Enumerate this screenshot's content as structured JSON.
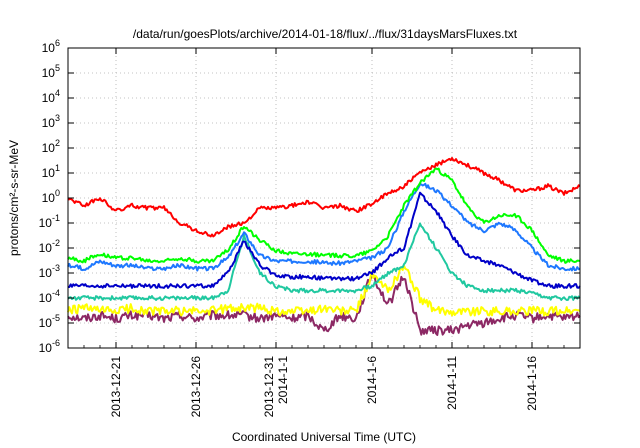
{
  "chart_data": {
    "type": "line",
    "title": "/data/run/goesPlots/archive/2014-01-18/flux/../flux/31daysMarsFluxes.txt",
    "xlabel": "Coordinated Universal Time (UTC)",
    "ylabel": "protons/cm²-s-sr-MeV",
    "log_y": true,
    "ylim": [
      1e-06,
      1000000.0
    ],
    "xlim": [
      "2013-12-18",
      "2014-01-19"
    ],
    "grid": true,
    "y_ticks": [
      {
        "value": 1e-06,
        "base": "10",
        "exp": "-6"
      },
      {
        "value": 1e-05,
        "base": "10",
        "exp": "-5"
      },
      {
        "value": 0.0001,
        "base": "10",
        "exp": "-4"
      },
      {
        "value": 0.001,
        "base": "10",
        "exp": "-3"
      },
      {
        "value": 0.01,
        "base": "10",
        "exp": "-2"
      },
      {
        "value": 0.1,
        "base": "10",
        "exp": "-1"
      },
      {
        "value": 1,
        "base": "10",
        "exp": "0"
      },
      {
        "value": 10.0,
        "base": "10",
        "exp": "1"
      },
      {
        "value": 100.0,
        "base": "10",
        "exp": "2"
      },
      {
        "value": 1000.0,
        "base": "10",
        "exp": "3"
      },
      {
        "value": 10000.0,
        "base": "10",
        "exp": "4"
      },
      {
        "value": 100000.0,
        "base": "10",
        "exp": "5"
      },
      {
        "value": 1000000.0,
        "base": "10",
        "exp": "6"
      }
    ],
    "x_ticks": [
      {
        "date": "2013-12-21",
        "lines": [
          "2013-12-21"
        ]
      },
      {
        "date": "2013-12-26",
        "lines": [
          "2013-12-26"
        ]
      },
      {
        "date": "2013-12-31",
        "lines": [
          "2013-12-31",
          "2014-1-1"
        ]
      },
      {
        "date": "2014-01-06",
        "lines": [
          "2014-1-6"
        ]
      },
      {
        "date": "2014-01-11",
        "lines": [
          "2014-1-11"
        ]
      },
      {
        "date": "2014-01-16",
        "lines": [
          "2014-1-16"
        ]
      }
    ],
    "series": [
      {
        "color": "#ff0000",
        "points": [
          [
            "2013-12-18",
            1.0
          ],
          [
            "2013-12-19",
            0.5
          ],
          [
            "2013-12-20",
            1.0
          ],
          [
            "2013-12-21",
            0.3
          ],
          [
            "2013-12-22",
            0.5
          ],
          [
            "2013-12-23",
            0.4
          ],
          [
            "2013-12-24",
            0.4
          ],
          [
            "2013-12-25",
            0.1
          ],
          [
            "2013-12-26",
            0.05
          ],
          [
            "2013-12-27",
            0.03
          ],
          [
            "2013-12-28",
            0.07
          ],
          [
            "2013-12-29",
            0.1
          ],
          [
            "2013-12-30",
            0.4
          ],
          [
            "2013-12-31",
            0.4
          ],
          [
            "2014-01-01",
            0.5
          ],
          [
            "2014-01-02",
            0.7
          ],
          [
            "2014-01-03",
            0.4
          ],
          [
            "2014-01-04",
            0.5
          ],
          [
            "2014-01-05",
            0.3
          ],
          [
            "2014-01-06",
            0.6
          ],
          [
            "2014-01-07",
            1.5
          ],
          [
            "2014-01-08",
            3
          ],
          [
            "2014-01-09",
            10
          ],
          [
            "2014-01-10",
            20
          ],
          [
            "2014-01-11",
            40
          ],
          [
            "2014-01-12",
            20
          ],
          [
            "2014-01-13",
            10
          ],
          [
            "2014-01-14",
            5
          ],
          [
            "2014-01-15",
            2
          ],
          [
            "2014-01-16",
            2
          ],
          [
            "2014-01-17",
            3
          ],
          [
            "2014-01-18",
            1.5
          ],
          [
            "2014-01-19",
            3
          ]
        ]
      },
      {
        "color": "#00ff00",
        "points": [
          [
            "2013-12-18",
            0.004
          ],
          [
            "2013-12-19",
            0.003
          ],
          [
            "2013-12-20",
            0.006
          ],
          [
            "2013-12-21",
            0.004
          ],
          [
            "2013-12-22",
            0.004
          ],
          [
            "2013-12-23",
            0.003
          ],
          [
            "2013-12-24",
            0.003
          ],
          [
            "2013-12-25",
            0.004
          ],
          [
            "2013-12-26",
            0.003
          ],
          [
            "2013-12-27",
            0.003
          ],
          [
            "2013-12-28",
            0.008
          ],
          [
            "2013-12-29",
            0.08
          ],
          [
            "2013-12-30",
            0.02
          ],
          [
            "2013-12-31",
            0.008
          ],
          [
            "2014-01-01",
            0.006
          ],
          [
            "2014-01-02",
            0.006
          ],
          [
            "2014-01-03",
            0.005
          ],
          [
            "2014-01-04",
            0.005
          ],
          [
            "2014-01-05",
            0.005
          ],
          [
            "2014-01-06",
            0.008
          ],
          [
            "2014-01-07",
            0.03
          ],
          [
            "2014-01-08",
            0.5
          ],
          [
            "2014-01-09",
            4
          ],
          [
            "2014-01-10",
            15
          ],
          [
            "2014-01-11",
            5
          ],
          [
            "2014-01-12",
            0.4
          ],
          [
            "2014-01-13",
            0.1
          ],
          [
            "2014-01-14",
            0.2
          ],
          [
            "2014-01-15",
            0.2
          ],
          [
            "2014-01-16",
            0.05
          ],
          [
            "2014-01-17",
            0.005
          ],
          [
            "2014-01-18",
            0.003
          ],
          [
            "2014-01-19",
            0.003
          ]
        ]
      },
      {
        "color": "#1e78ff",
        "points": [
          [
            "2013-12-18",
            0.002
          ],
          [
            "2013-12-19",
            0.0015
          ],
          [
            "2013-12-20",
            0.003
          ],
          [
            "2013-12-21",
            0.002
          ],
          [
            "2013-12-22",
            0.002
          ],
          [
            "2013-12-23",
            0.0015
          ],
          [
            "2013-12-24",
            0.0015
          ],
          [
            "2013-12-25",
            0.002
          ],
          [
            "2013-12-26",
            0.0015
          ],
          [
            "2013-12-27",
            0.0015
          ],
          [
            "2013-12-28",
            0.004
          ],
          [
            "2013-12-29",
            0.04
          ],
          [
            "2013-12-30",
            0.005
          ],
          [
            "2013-12-31",
            0.003
          ],
          [
            "2014-01-01",
            0.003
          ],
          [
            "2014-01-02",
            0.003
          ],
          [
            "2014-01-03",
            0.0025
          ],
          [
            "2014-01-04",
            0.0025
          ],
          [
            "2014-01-05",
            0.003
          ],
          [
            "2014-01-06",
            0.004
          ],
          [
            "2014-01-07",
            0.01
          ],
          [
            "2014-01-08",
            0.3
          ],
          [
            "2014-01-09",
            4
          ],
          [
            "2014-01-10",
            2
          ],
          [
            "2014-01-11",
            0.5
          ],
          [
            "2014-01-12",
            0.1
          ],
          [
            "2014-01-13",
            0.05
          ],
          [
            "2014-01-14",
            0.1
          ],
          [
            "2014-01-15",
            0.05
          ],
          [
            "2014-01-16",
            0.01
          ],
          [
            "2014-01-17",
            0.002
          ],
          [
            "2014-01-18",
            0.0015
          ],
          [
            "2014-01-19",
            0.0015
          ]
        ]
      },
      {
        "color": "#0000c8",
        "points": [
          [
            "2013-12-18",
            0.0003
          ],
          [
            "2013-12-19",
            0.0003
          ],
          [
            "2013-12-20",
            0.0003
          ],
          [
            "2013-12-21",
            0.0003
          ],
          [
            "2013-12-22",
            0.0003
          ],
          [
            "2013-12-23",
            0.0003
          ],
          [
            "2013-12-24",
            0.0003
          ],
          [
            "2013-12-25",
            0.0003
          ],
          [
            "2013-12-26",
            0.0003
          ],
          [
            "2013-12-27",
            0.0003
          ],
          [
            "2013-12-28",
            0.001
          ],
          [
            "2013-12-29",
            0.02
          ],
          [
            "2013-12-30",
            0.002
          ],
          [
            "2013-12-31",
            0.0008
          ],
          [
            "2014-01-01",
            0.0007
          ],
          [
            "2014-01-02",
            0.0007
          ],
          [
            "2014-01-03",
            0.0006
          ],
          [
            "2014-01-04",
            0.0006
          ],
          [
            "2014-01-05",
            0.0006
          ],
          [
            "2014-01-06",
            0.001
          ],
          [
            "2014-01-07",
            0.004
          ],
          [
            "2014-01-08",
            0.01
          ],
          [
            "2014-01-09",
            1.5
          ],
          [
            "2014-01-10",
            0.3
          ],
          [
            "2014-01-11",
            0.03
          ],
          [
            "2014-01-12",
            0.005
          ],
          [
            "2014-01-13",
            0.003
          ],
          [
            "2014-01-14",
            0.002
          ],
          [
            "2014-01-15",
            0.001
          ],
          [
            "2014-01-16",
            0.0005
          ],
          [
            "2014-01-17",
            0.0003
          ],
          [
            "2014-01-18",
            0.0003
          ],
          [
            "2014-01-19",
            0.0003
          ]
        ]
      },
      {
        "color": "#20c8a0",
        "points": [
          [
            "2013-12-18",
            0.0001
          ],
          [
            "2013-12-19",
            0.0001
          ],
          [
            "2013-12-20",
            0.0001
          ],
          [
            "2013-12-21",
            0.0001
          ],
          [
            "2013-12-22",
            0.0001
          ],
          [
            "2013-12-23",
            0.0001
          ],
          [
            "2013-12-24",
            0.0001
          ],
          [
            "2013-12-25",
            0.0001
          ],
          [
            "2013-12-26",
            0.0001
          ],
          [
            "2013-12-27",
            0.0001
          ],
          [
            "2013-12-28",
            0.0002
          ],
          [
            "2013-12-29",
            0.03
          ],
          [
            "2013-12-30",
            0.001
          ],
          [
            "2013-12-31",
            0.0003
          ],
          [
            "2014-01-01",
            0.0002
          ],
          [
            "2014-01-02",
            0.0002
          ],
          [
            "2014-01-03",
            0.0002
          ],
          [
            "2014-01-04",
            0.0002
          ],
          [
            "2014-01-05",
            0.0002
          ],
          [
            "2014-01-06",
            0.0003
          ],
          [
            "2014-01-07",
            0.001
          ],
          [
            "2014-01-08",
            0.002
          ],
          [
            "2014-01-09",
            0.1
          ],
          [
            "2014-01-10",
            0.01
          ],
          [
            "2014-01-11",
            0.001
          ],
          [
            "2014-01-12",
            0.0003
          ],
          [
            "2014-01-13",
            0.0002
          ],
          [
            "2014-01-14",
            0.0002
          ],
          [
            "2014-01-15",
            0.0002
          ],
          [
            "2014-01-16",
            0.00015
          ],
          [
            "2014-01-17",
            0.0001
          ],
          [
            "2014-01-18",
            0.0001
          ],
          [
            "2014-01-19",
            0.0001
          ]
        ]
      },
      {
        "color": "#ffff00",
        "points": [
          [
            "2013-12-18",
            3e-05
          ],
          [
            "2013-12-19",
            4e-05
          ],
          [
            "2013-12-20",
            3e-05
          ],
          [
            "2013-12-21",
            3e-05
          ],
          [
            "2013-12-22",
            4e-05
          ],
          [
            "2013-12-23",
            3e-05
          ],
          [
            "2013-12-24",
            3e-05
          ],
          [
            "2013-12-25",
            3e-05
          ],
          [
            "2013-12-26",
            3e-05
          ],
          [
            "2013-12-27",
            3e-05
          ],
          [
            "2013-12-28",
            4e-05
          ],
          [
            "2013-12-29",
            4e-05
          ],
          [
            "2013-12-30",
            4e-05
          ],
          [
            "2013-12-31",
            3e-05
          ],
          [
            "2014-01-01",
            3e-05
          ],
          [
            "2014-01-02",
            3e-05
          ],
          [
            "2014-01-03",
            4e-05
          ],
          [
            "2014-01-04",
            3e-05
          ],
          [
            "2014-01-05",
            3e-05
          ],
          [
            "2014-01-06",
            0.0008
          ],
          [
            "2014-01-07",
            0.0002
          ],
          [
            "2014-01-08",
            0.002
          ],
          [
            "2014-01-09",
            0.0001
          ],
          [
            "2014-01-10",
            3e-05
          ],
          [
            "2014-01-11",
            3e-05
          ],
          [
            "2014-01-12",
            3e-05
          ],
          [
            "2014-01-13",
            3e-05
          ],
          [
            "2014-01-14",
            3e-05
          ],
          [
            "2014-01-15",
            3e-05
          ],
          [
            "2014-01-16",
            3e-05
          ],
          [
            "2014-01-17",
            3e-05
          ],
          [
            "2014-01-18",
            3e-05
          ],
          [
            "2014-01-19",
            3e-05
          ]
        ]
      },
      {
        "color": "#8c2864",
        "points": [
          [
            "2013-12-18",
            2e-05
          ],
          [
            "2013-12-19",
            1.5e-05
          ],
          [
            "2013-12-20",
            2e-05
          ],
          [
            "2013-12-21",
            1.5e-05
          ],
          [
            "2013-12-22",
            2e-05
          ],
          [
            "2013-12-23",
            2e-05
          ],
          [
            "2013-12-24",
            1.5e-05
          ],
          [
            "2013-12-25",
            2e-05
          ],
          [
            "2013-12-26",
            1.5e-05
          ],
          [
            "2013-12-27",
            2e-05
          ],
          [
            "2013-12-28",
            2e-05
          ],
          [
            "2013-12-29",
            2e-05
          ],
          [
            "2013-12-30",
            1.5e-05
          ],
          [
            "2013-12-31",
            2e-05
          ],
          [
            "2014-01-01",
            1.5e-05
          ],
          [
            "2014-01-02",
            2e-05
          ],
          [
            "2014-01-03",
            5e-06
          ],
          [
            "2014-01-04",
            2e-05
          ],
          [
            "2014-01-05",
            1.5e-05
          ],
          [
            "2014-01-06",
            0.001
          ],
          [
            "2014-01-07",
            5e-05
          ],
          [
            "2014-01-08",
            0.0008
          ],
          [
            "2014-01-09",
            5e-06
          ],
          [
            "2014-01-10",
            5e-06
          ],
          [
            "2014-01-11",
            5e-06
          ],
          [
            "2014-01-12",
            8e-06
          ],
          [
            "2014-01-13",
            1e-05
          ],
          [
            "2014-01-14",
            1.5e-05
          ],
          [
            "2014-01-15",
            2e-05
          ],
          [
            "2014-01-16",
            1.5e-05
          ],
          [
            "2014-01-17",
            2e-05
          ],
          [
            "2014-01-18",
            1.5e-05
          ],
          [
            "2014-01-19",
            2e-05
          ]
        ]
      }
    ]
  }
}
